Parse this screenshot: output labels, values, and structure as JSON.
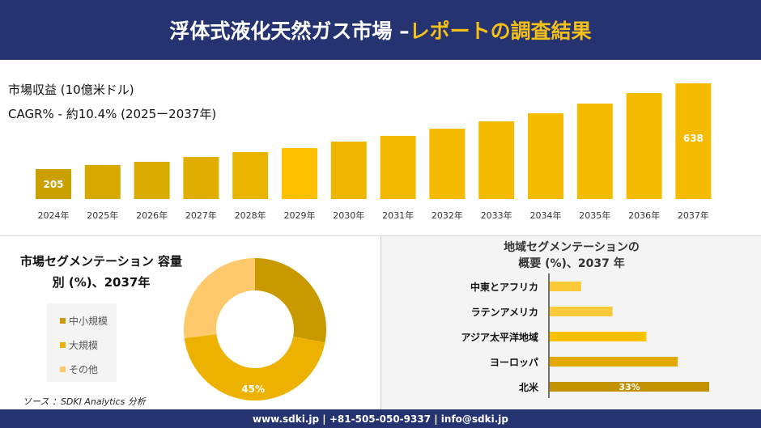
{
  "header": {
    "title_main": "浮体式液化天然ガス市場 –",
    "title_highlight": "レポートの調査結果"
  },
  "revenue": {
    "label": "市場収益 (10億米ドル)",
    "cagr": "CAGR% - 約10.4% (2025ー2037年)"
  },
  "chart_data": [
    {
      "type": "bar",
      "categories": [
        "2024年",
        "2025年",
        "2026年",
        "2027年",
        "2028年",
        "2029年",
        "2030年",
        "2031年",
        "2032年",
        "2033年",
        "2034年",
        "2035年",
        "2036年",
        "2037年"
      ],
      "values": [
        205,
        226,
        242,
        266,
        291,
        311,
        344,
        373,
        409,
        446,
        487,
        536,
        589,
        638
      ],
      "data_labels": {
        "2024年": "205",
        "2037年": "638"
      },
      "ylim": [
        54,
        650
      ],
      "grid": false,
      "colors": [
        "#c9a000",
        "#d7a800",
        "#d9aa00",
        "#e0ae00",
        "#e8b400",
        "#ffc000",
        "#efb600",
        "#f2b800",
        "#f4ba00",
        "#f5bb00",
        "#f5bb00",
        "#f5bb00",
        "#f5bb00",
        "#f5bb00"
      ]
    },
    {
      "type": "pie",
      "title": "市場セグメンテーション 容量別 (%)、2037年",
      "labels": [
        "中小規模",
        "大規模",
        "その他"
      ],
      "values": [
        28,
        45,
        27
      ],
      "colors": [
        "#c89a00",
        "#edb200",
        "#fdc96a"
      ],
      "data_labels": [
        "",
        "45%",
        ""
      ],
      "legend": "left"
    },
    {
      "type": "bar",
      "orientation": "horizontal",
      "title": "地域セグメンテーションの 概要 (%)、2037 年",
      "categories": [
        "中東とアフリカ",
        "ラテンアメリカ",
        "アジア太平洋地域",
        "ヨーロッパ",
        "北米"
      ],
      "values": [
        6.5,
        13,
        20,
        26.5,
        33
      ],
      "colors": [
        "#fcc936",
        "#fcc93a",
        "#ffc000",
        "#e2aa00",
        "#c29200"
      ],
      "data_labels": [
        "",
        "",
        "",
        "",
        "33%"
      ]
    }
  ],
  "source": "ソース ：SDKI Analytics 分析",
  "footer": "www.sdki.jp | +81-505-050-9337 | info@sdki.jp"
}
